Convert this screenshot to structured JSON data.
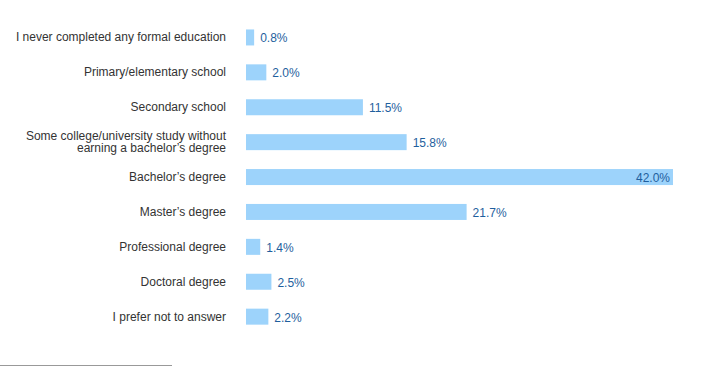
{
  "chart_data": {
    "type": "bar",
    "orientation": "horizontal",
    "categories": [
      "I never completed any formal education",
      "Primary/elementary school",
      "Secondary school",
      "Some college/university study without earning a bachelor’s degree",
      "Bachelor’s degree",
      "Master’s degree",
      "Professional degree",
      "Doctoral degree",
      "I prefer not to answer"
    ],
    "values": [
      0.8,
      2.0,
      11.5,
      15.8,
      42.0,
      21.7,
      1.4,
      2.5,
      2.2
    ],
    "value_labels": [
      "0.8%",
      "2.0%",
      "11.5%",
      "15.8%",
      "42.0%",
      "21.7%",
      "1.4%",
      "2.5%",
      "2.2%"
    ],
    "color": "#9dd3fb",
    "data_labels": true,
    "tick_labels": false,
    "grid": false
  }
}
